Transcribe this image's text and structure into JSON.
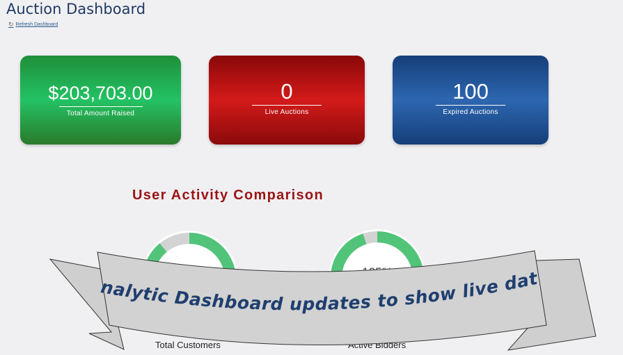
{
  "header": {
    "title": "Auction Dashboard",
    "refresh_label": "Refresh Dashboard",
    "refresh_icon": "refresh-icon"
  },
  "cards": [
    {
      "value": "$203,703.00",
      "label": "Total Amount Raised",
      "color": "#23c264"
    },
    {
      "value": "0",
      "label": "Live Auctions",
      "color": "#d41a1a"
    },
    {
      "value": "100",
      "label": "Expired Auctions",
      "color": "#2d66b0"
    }
  ],
  "section": {
    "title": "User Activity Comparison"
  },
  "gauges": [
    {
      "label": "Total Customers",
      "fill_percent": 89,
      "color": "#52c47a"
    },
    {
      "label": "Active Bidders",
      "value_text": "105%",
      "fill_percent": 95,
      "color": "#52c47a"
    }
  ],
  "banner": {
    "text": "Analytic Dashboard updates to show live data",
    "text_color": "#1f3f6e",
    "fill": "#d0d0d0"
  }
}
